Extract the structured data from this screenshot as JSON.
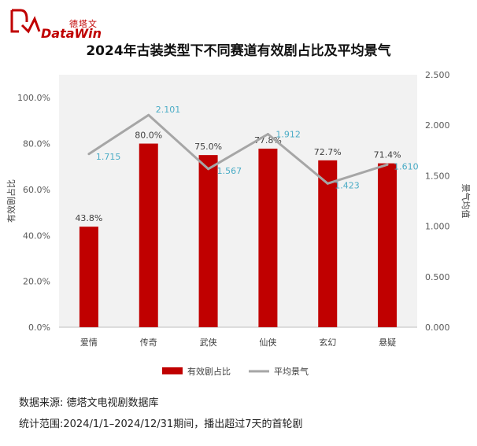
{
  "brand": {
    "name_cn": "德塔文",
    "name_en": "DataWin",
    "color": "#c00000"
  },
  "chart_data": {
    "type": "bar",
    "title": "2024年古装类型下不同赛道有效剧占比及平均景气",
    "categories": [
      "爱情",
      "传奇",
      "武侠",
      "仙侠",
      "玄幻",
      "悬疑"
    ],
    "series": [
      {
        "name": "有效剧占比",
        "type": "bar",
        "axis": "left",
        "color": "#c00000",
        "values": [
          43.8,
          80.0,
          75.0,
          77.8,
          72.7,
          71.4
        ],
        "labels": [
          "43.8%",
          "80.0%",
          "75.0%",
          "77.8%",
          "72.7%",
          "71.4%"
        ]
      },
      {
        "name": "平均景气",
        "type": "line",
        "axis": "right",
        "color": "#a6a6a6",
        "label_color": "#4bacc6",
        "values": [
          1.715,
          2.101,
          1.567,
          1.912,
          1.423,
          1.61
        ],
        "labels": [
          "1.715",
          "2.101",
          "1.567",
          "1.912",
          "1.423",
          "1.610"
        ]
      }
    ],
    "ylabel": "有效剧占比",
    "y2label": "景气均值",
    "ylim": [
      0,
      110
    ],
    "y2lim": [
      0,
      2.5
    ],
    "yticks": [
      "0.0%",
      "20.0%",
      "40.0%",
      "60.0%",
      "80.0%",
      "100.0%"
    ],
    "y2ticks": [
      "0.000",
      "0.500",
      "1.000",
      "1.500",
      "2.000",
      "2.500"
    ],
    "legend": "bottom",
    "grid": false
  },
  "footer": {
    "source": "数据来源: 德塔文电视剧数据库",
    "range": "统计范围:2024/1/1–2024/12/31期间，播出超过7天的首轮剧"
  }
}
